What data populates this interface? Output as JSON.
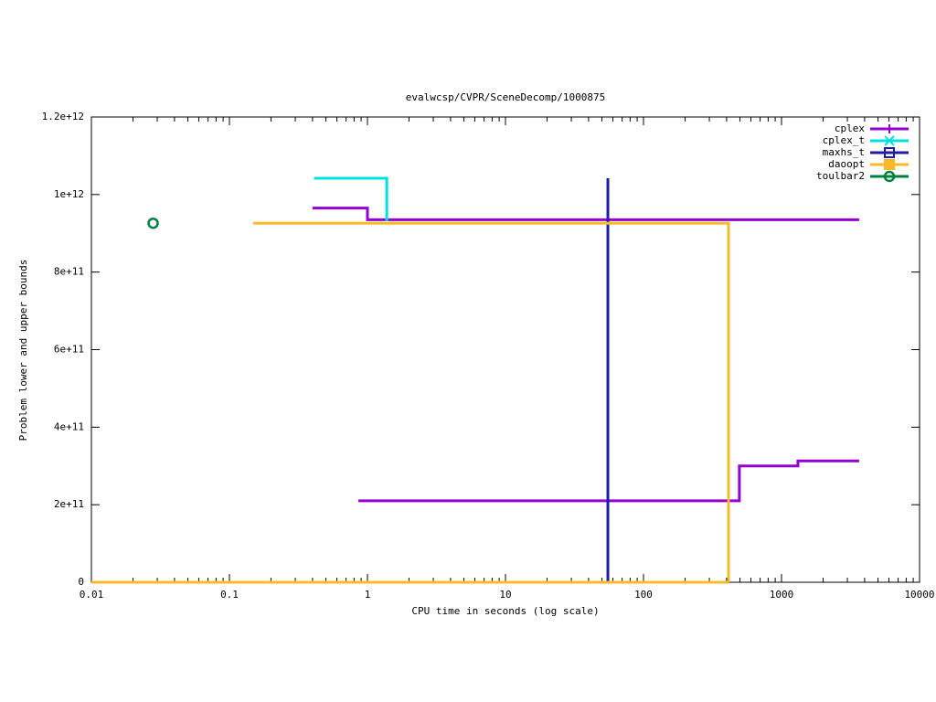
{
  "chart_data": {
    "type": "line",
    "title": "evalwcsp/CVPR/SceneDecomp/1000875",
    "x_label": "CPU time in seconds (log scale)",
    "y_label": "Problem lower and upper bounds",
    "xscale": "log",
    "xlim": [
      0.01,
      10000
    ],
    "xticks": [
      0.01,
      0.1,
      1,
      10,
      100,
      1000,
      10000
    ],
    "ylim": [
      0,
      1200000000000
    ],
    "yticks": [
      0,
      {
        "value": 200000000000,
        "label": "2e+11"
      },
      {
        "value": 400000000000,
        "label": "4e+11"
      },
      {
        "value": 600000000000,
        "label": "6e+11"
      },
      {
        "value": 800000000000,
        "label": "8e+11"
      },
      {
        "value": 1000000000000,
        "label": "1e+12"
      },
      {
        "value": 1200000000000,
        "label": "1.2e+12"
      }
    ],
    "legend": "top-right",
    "series": [
      {
        "name": "cplex",
        "color": "#9400d3",
        "marker": "plus",
        "x": [
          0.4,
          1,
          1,
          3650,
          null,
          0.86,
          495,
          495,
          1315,
          1315,
          3650
        ],
        "values": [
          965000000000,
          965000000000,
          935000000000,
          935000000000,
          null,
          210000000000,
          210000000000,
          300000000000,
          300000000000,
          313000000000,
          313000000000
        ]
      },
      {
        "name": "cplex_t",
        "color": "#00e0e0",
        "marker": "cross",
        "x": [
          0.41,
          1.38,
          1.38
        ],
        "values": [
          1042000000000,
          1042000000000,
          931000000000
        ]
      },
      {
        "name": "maxhs_t",
        "color": "#1c1ca8",
        "marker": "square",
        "x": [
          55.2,
          55.2
        ],
        "values": [
          0,
          1042000000000
        ]
      },
      {
        "name": "daoopt",
        "color": "#fbb829",
        "marker": "filled-square",
        "x": [
          0.149,
          413,
          413,
          null,
          0.01,
          413
        ],
        "values": [
          926000000000,
          926000000000,
          0,
          null,
          0,
          0
        ]
      },
      {
        "name": "toulbar2",
        "color": "#008040",
        "marker": "circle",
        "x": [
          0.028
        ],
        "values": [
          926000000000
        ]
      }
    ]
  }
}
